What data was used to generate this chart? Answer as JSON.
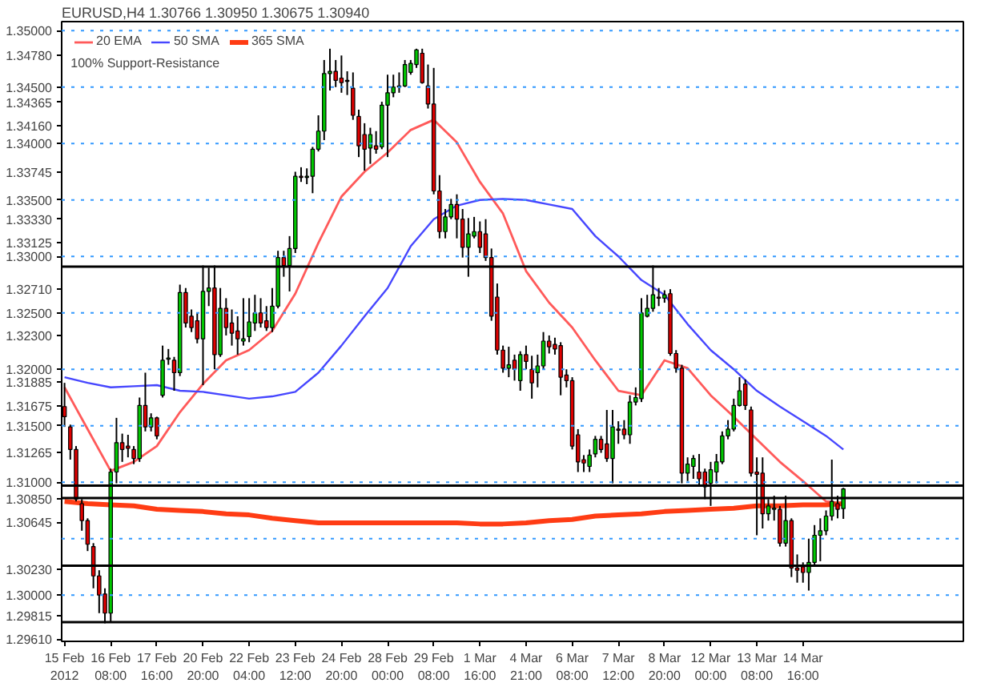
{
  "chart_data": {
    "type": "candlestick",
    "title": "EURUSD,H4 1.30766 1.30950 1.30675 1.30940",
    "categories": [
      "15 Feb 2012",
      null,
      null,
      null,
      null,
      null,
      null,
      null,
      "16 Feb 08:00",
      null,
      null,
      null,
      null,
      null,
      null,
      null,
      "17 Feb 16:00",
      null,
      null,
      null,
      null,
      null,
      null,
      null,
      "20 Feb 20:00",
      null,
      null,
      null,
      null,
      null,
      null,
      null,
      "22 Feb 04:00",
      null,
      null,
      null,
      null,
      null,
      null,
      null,
      "23 Feb 12:00",
      null,
      null,
      null,
      null,
      null,
      null,
      null,
      "24 Feb 20:00",
      null,
      null,
      null,
      null,
      null,
      null,
      null,
      "28 Feb 00:00",
      null,
      null,
      null,
      null,
      null,
      null,
      null,
      "29 Feb 08:00",
      null,
      null,
      null,
      null,
      null,
      null,
      null,
      "1 Mar 16:00",
      null,
      null,
      null,
      null,
      null,
      null,
      null,
      "4 Mar 21:00",
      null,
      null,
      null,
      null,
      null,
      null,
      null,
      "6 Mar 08:00",
      null,
      null,
      null,
      null,
      null,
      null,
      null,
      "7 Mar 12:00",
      null,
      null,
      null,
      null,
      null,
      null,
      null,
      "8 Mar 20:00",
      null,
      null,
      null,
      null,
      null,
      null,
      null,
      "12 Mar 00:00",
      null,
      null,
      null,
      null,
      null,
      null,
      null,
      "13 Mar 08:00",
      null,
      null,
      null,
      null,
      null,
      null,
      null,
      "14 Mar 16:00",
      null,
      null,
      null,
      null,
      null,
      null,
      null
    ],
    "ohlc": [
      [
        1.3167,
        1.3188,
        1.3149,
        1.3158
      ],
      [
        1.3149,
        1.3151,
        1.312,
        1.3129
      ],
      [
        1.3129,
        1.3132,
        1.3083,
        1.3085
      ],
      [
        1.3081,
        1.3085,
        1.3057,
        1.3066
      ],
      [
        1.3066,
        1.3068,
        1.3039,
        1.3045
      ],
      [
        1.3043,
        1.3046,
        1.3006,
        1.3017
      ],
      [
        1.3017,
        1.3022,
        1.2984,
        1.3
      ],
      [
        1.3001,
        1.3006,
        1.2975,
        1.2984
      ],
      [
        1.2984,
        1.3112,
        1.2976,
        1.3109
      ],
      [
        1.3109,
        1.3157,
        1.3099,
        1.3135
      ],
      [
        1.3135,
        1.3143,
        1.3118,
        1.3129
      ],
      [
        1.3132,
        1.3142,
        1.3122,
        1.313
      ],
      [
        1.3129,
        1.3132,
        1.3116,
        1.3121
      ],
      [
        1.3121,
        1.3175,
        1.3118,
        1.3168
      ],
      [
        1.3168,
        1.3197,
        1.3145,
        1.3149
      ],
      [
        1.3149,
        1.3161,
        1.3145,
        1.3157
      ],
      [
        1.3157,
        1.3158,
        1.3138,
        1.3141
      ],
      [
        1.3177,
        1.3221,
        1.3175,
        1.3208
      ],
      [
        1.3209,
        1.3218,
        1.3204,
        1.321
      ],
      [
        1.3208,
        1.3211,
        1.3181,
        1.3197
      ],
      [
        1.3197,
        1.3275,
        1.3194,
        1.3268
      ],
      [
        1.3268,
        1.3272,
        1.3237,
        1.3241
      ],
      [
        1.3247,
        1.3253,
        1.3233,
        1.3237
      ],
      [
        1.3243,
        1.325,
        1.3223,
        1.3227
      ],
      [
        1.3227,
        1.3292,
        1.3186,
        1.3269
      ],
      [
        1.3269,
        1.329,
        1.3256,
        1.3272
      ],
      [
        1.3272,
        1.3292,
        1.32,
        1.3213
      ],
      [
        1.3213,
        1.3272,
        1.3211,
        1.3254
      ],
      [
        1.3254,
        1.3263,
        1.323,
        1.3237
      ],
      [
        1.3241,
        1.3253,
        1.3221,
        1.3232
      ],
      [
        1.3234,
        1.3247,
        1.3213,
        1.3227
      ],
      [
        1.3225,
        1.3263,
        1.3221,
        1.3227
      ],
      [
        1.3229,
        1.3263,
        1.3224,
        1.3242
      ],
      [
        1.3241,
        1.3266,
        1.3234,
        1.325
      ],
      [
        1.325,
        1.3263,
        1.3237,
        1.3241
      ],
      [
        1.3243,
        1.3256,
        1.3234,
        1.3237
      ],
      [
        1.3237,
        1.3272,
        1.3233,
        1.3256
      ],
      [
        1.3256,
        1.3305,
        1.3254,
        1.3299
      ],
      [
        1.3299,
        1.3305,
        1.3282,
        1.3292
      ],
      [
        1.3292,
        1.3318,
        1.3269,
        1.3307
      ],
      [
        1.3307,
        1.3375,
        1.3303,
        1.3371
      ],
      [
        1.3371,
        1.3379,
        1.3366,
        1.337
      ],
      [
        1.337,
        1.3378,
        1.3364,
        1.3371
      ],
      [
        1.3371,
        1.3397,
        1.3356,
        1.3395
      ],
      [
        1.3395,
        1.3425,
        1.3393,
        1.3411
      ],
      [
        1.3411,
        1.3474,
        1.3403,
        1.3462
      ],
      [
        1.3462,
        1.3484,
        1.3447,
        1.3464
      ],
      [
        1.3464,
        1.3474,
        1.345,
        1.3456
      ],
      [
        1.3458,
        1.3478,
        1.3445,
        1.3454
      ],
      [
        1.3456,
        1.3464,
        1.3443,
        1.3455
      ],
      [
        1.3449,
        1.3463,
        1.3421,
        1.3425
      ],
      [
        1.3424,
        1.343,
        1.3388,
        1.3398
      ],
      [
        1.3408,
        1.3418,
        1.3376,
        1.3395
      ],
      [
        1.3396,
        1.3414,
        1.3382,
        1.3408
      ],
      [
        1.3398,
        1.3411,
        1.3391,
        1.3395
      ],
      [
        1.3397,
        1.3437,
        1.3395,
        1.3434
      ],
      [
        1.3434,
        1.3461,
        1.3388,
        1.3445
      ],
      [
        1.3445,
        1.3461,
        1.3441,
        1.345
      ],
      [
        1.345,
        1.3463,
        1.3445,
        1.3451
      ],
      [
        1.3451,
        1.3474,
        1.345,
        1.347
      ],
      [
        1.3463,
        1.3474,
        1.3461,
        1.3471
      ],
      [
        1.347,
        1.3484,
        1.3467,
        1.3483
      ],
      [
        1.348,
        1.3484,
        1.3453,
        1.3454
      ],
      [
        1.3451,
        1.347,
        1.3431,
        1.3435
      ],
      [
        1.3435,
        1.3467,
        1.3355,
        1.3358
      ],
      [
        1.3358,
        1.3372,
        1.3316,
        1.3322
      ],
      [
        1.3322,
        1.3342,
        1.3316,
        1.3335
      ],
      [
        1.3335,
        1.3351,
        1.3333,
        1.3346
      ],
      [
        1.3346,
        1.3355,
        1.3316,
        1.3333
      ],
      [
        1.3333,
        1.3342,
        1.3299,
        1.3308
      ],
      [
        1.3308,
        1.3334,
        1.3282,
        1.332
      ],
      [
        1.3318,
        1.3335,
        1.3316,
        1.3322
      ],
      [
        1.3322,
        1.3331,
        1.3303,
        1.3308
      ],
      [
        1.332,
        1.3333,
        1.3296,
        1.3299
      ],
      [
        1.3299,
        1.3307,
        1.3243,
        1.3247
      ],
      [
        1.3264,
        1.3276,
        1.3213,
        1.3217
      ],
      [
        1.3217,
        1.3221,
        1.3197,
        1.3201
      ],
      [
        1.3201,
        1.322,
        1.3193,
        1.3204
      ],
      [
        1.3208,
        1.3213,
        1.319,
        1.32
      ],
      [
        1.319,
        1.3216,
        1.3181,
        1.3213
      ],
      [
        1.3213,
        1.3221,
        1.32,
        1.3207
      ],
      [
        1.32,
        1.3212,
        1.3174,
        1.3188
      ],
      [
        1.3197,
        1.3213,
        1.3184,
        1.3203
      ],
      [
        1.3203,
        1.3233,
        1.32,
        1.3225
      ],
      [
        1.3225,
        1.323,
        1.3214,
        1.322
      ],
      [
        1.3222,
        1.3228,
        1.3213,
        1.3218
      ],
      [
        1.3221,
        1.3224,
        1.3177,
        1.3193
      ],
      [
        1.3195,
        1.32,
        1.3184,
        1.319
      ],
      [
        1.319,
        1.3193,
        1.3129,
        1.3132
      ],
      [
        1.3142,
        1.3147,
        1.3109,
        1.3118
      ],
      [
        1.312,
        1.3124,
        1.3109,
        1.3117
      ],
      [
        1.3114,
        1.3129,
        1.3109,
        1.3124
      ],
      [
        1.3125,
        1.3141,
        1.3122,
        1.3138
      ],
      [
        1.3138,
        1.3141,
        1.3126,
        1.3129
      ],
      [
        1.3134,
        1.3164,
        1.3118,
        1.3121
      ],
      [
        1.3121,
        1.3164,
        1.3099,
        1.3149
      ],
      [
        1.3147,
        1.3154,
        1.3134,
        1.3146
      ],
      [
        1.3147,
        1.3155,
        1.3138,
        1.3142
      ],
      [
        1.3142,
        1.3177,
        1.3134,
        1.3171
      ],
      [
        1.3171,
        1.3184,
        1.3168,
        1.3175
      ],
      [
        1.3174,
        1.3263,
        1.3171,
        1.325
      ],
      [
        1.3247,
        1.3266,
        1.3246,
        1.3254
      ],
      [
        1.3254,
        1.3292,
        1.3251,
        1.3266
      ],
      [
        1.3264,
        1.3272,
        1.3256,
        1.3263
      ],
      [
        1.3263,
        1.327,
        1.3259,
        1.3266
      ],
      [
        1.3267,
        1.3271,
        1.3212,
        1.3214
      ],
      [
        1.3214,
        1.3217,
        1.3197,
        1.3201
      ],
      [
        1.3201,
        1.3204,
        1.3099,
        1.3108
      ],
      [
        1.3108,
        1.3122,
        1.3101,
        1.3116
      ],
      [
        1.3114,
        1.3124,
        1.3103,
        1.3121
      ],
      [
        1.3109,
        1.3125,
        1.3097,
        1.3103
      ],
      [
        1.3109,
        1.3112,
        1.3085,
        1.3096
      ],
      [
        1.3099,
        1.3118,
        1.3079,
        1.3111
      ],
      [
        1.3109,
        1.3125,
        1.3099,
        1.3118
      ],
      [
        1.3118,
        1.3145,
        1.3116,
        1.3141
      ],
      [
        1.3141,
        1.3155,
        1.3138,
        1.3147
      ],
      [
        1.3147,
        1.3174,
        1.3145,
        1.3168
      ],
      [
        1.3168,
        1.3193,
        1.3167,
        1.3181
      ],
      [
        1.3187,
        1.3191,
        1.3164,
        1.3168
      ],
      [
        1.3164,
        1.3167,
        1.3105,
        1.3108
      ],
      [
        1.3109,
        1.3122,
        1.3053,
        1.3107
      ],
      [
        1.3108,
        1.3122,
        1.3059,
        1.3072
      ],
      [
        1.3072,
        1.3085,
        1.3066,
        1.3079
      ],
      [
        1.3076,
        1.3088,
        1.3066,
        1.3077
      ],
      [
        1.3076,
        1.3079,
        1.3043,
        1.3046
      ],
      [
        1.3046,
        1.3088,
        1.3043,
        1.3066
      ],
      [
        1.3066,
        1.3068,
        1.3016,
        1.3024
      ],
      [
        1.3024,
        1.3036,
        1.3011,
        1.3022
      ],
      [
        1.3025,
        1.3029,
        1.3011,
        1.302
      ],
      [
        1.302,
        1.305,
        1.3004,
        1.3029
      ],
      [
        1.3029,
        1.3062,
        1.3026,
        1.3053
      ],
      [
        1.3053,
        1.3068,
        1.303,
        1.3057
      ],
      [
        1.3057,
        1.3075,
        1.3053,
        1.307
      ],
      [
        1.307,
        1.312,
        1.3066,
        1.3083
      ],
      [
        1.3081,
        1.3088,
        1.3068,
        1.3076
      ],
      [
        1.30766,
        1.3095,
        1.30675,
        1.3094
      ]
    ],
    "series": [
      {
        "name": "20 EMA",
        "type": "line",
        "color": "#ff5a5a",
        "values": [
          1.3184,
          null,
          null,
          null,
          1.3147,
          null,
          null,
          null,
          1.311,
          null,
          null,
          null,
          1.3118,
          null,
          null,
          null,
          1.3132,
          null,
          null,
          null,
          1.3162,
          null,
          null,
          null,
          1.3187,
          null,
          null,
          null,
          1.3208,
          null,
          null,
          null,
          1.3217,
          null,
          null,
          null,
          1.3234,
          null,
          null,
          null,
          1.3267,
          null,
          null,
          null,
          1.3312,
          null,
          null,
          null,
          1.3353,
          null,
          null,
          null,
          1.3375,
          null,
          null,
          null,
          1.3392,
          null,
          null,
          null,
          1.3412,
          null,
          null,
          null,
          1.3421,
          null,
          null,
          null,
          1.3401,
          null,
          null,
          null,
          1.3366,
          null,
          null,
          null,
          1.3338,
          null,
          null,
          null,
          1.3287,
          null,
          null,
          null,
          1.3259,
          null,
          null,
          null,
          1.3237,
          null,
          null,
          null,
          1.3208,
          null,
          null,
          null,
          1.3181,
          null,
          null,
          null,
          1.3177,
          null,
          null,
          null,
          1.3208,
          null,
          null,
          null,
          1.3201,
          null,
          null,
          null,
          1.3177,
          null,
          null,
          null,
          1.3158,
          null,
          null,
          null,
          1.3138,
          null,
          null,
          null,
          1.3118,
          null,
          null,
          null,
          1.3101,
          null,
          null,
          null,
          1.3083,
          null,
          null,
          1.3081
        ]
      },
      {
        "name": "50 SMA",
        "type": "line",
        "color": "#4646ff",
        "values": [
          1.3193,
          null,
          null,
          null,
          1.3188,
          null,
          null,
          null,
          1.3184,
          null,
          null,
          null,
          1.3185,
          null,
          null,
          null,
          1.3186,
          null,
          null,
          null,
          1.3181,
          null,
          null,
          null,
          1.318,
          null,
          null,
          null,
          1.3177,
          null,
          null,
          null,
          1.3174,
          null,
          null,
          null,
          1.3176,
          null,
          null,
          null,
          1.318,
          null,
          null,
          null,
          1.3197,
          null,
          null,
          null,
          1.3221,
          null,
          null,
          null,
          1.3247,
          null,
          null,
          null,
          1.3272,
          null,
          null,
          null,
          1.3309,
          null,
          null,
          null,
          1.3333,
          null,
          null,
          null,
          1.3345,
          null,
          null,
          null,
          1.335,
          null,
          null,
          null,
          1.3351,
          null,
          null,
          null,
          1.335,
          null,
          null,
          null,
          1.3346,
          null,
          null,
          null,
          1.3342,
          null,
          null,
          null,
          1.3318,
          null,
          null,
          null,
          1.33,
          null,
          null,
          null,
          1.3279,
          null,
          null,
          null,
          1.3266,
          null,
          null,
          null,
          1.324,
          null,
          null,
          null,
          1.3217,
          null,
          null,
          null,
          1.32,
          null,
          null,
          null,
          1.3181,
          null,
          null,
          null,
          1.3167,
          null,
          null,
          null,
          1.3154,
          null,
          null,
          null,
          1.3141,
          null,
          null,
          1.3129
        ]
      },
      {
        "name": "365 SMA",
        "type": "line",
        "color": "#ff3c14",
        "values": [
          1.3083,
          null,
          null,
          null,
          1.3081,
          null,
          null,
          null,
          1.308,
          null,
          null,
          null,
          1.3079,
          null,
          null,
          null,
          1.3076,
          null,
          null,
          null,
          1.3075,
          null,
          null,
          null,
          1.3074,
          null,
          null,
          null,
          1.3072,
          null,
          null,
          null,
          1.3071,
          null,
          null,
          null,
          1.3068,
          null,
          null,
          null,
          1.3066,
          null,
          null,
          null,
          1.3064,
          null,
          null,
          null,
          1.3064,
          null,
          null,
          null,
          1.3064,
          null,
          null,
          null,
          1.3064,
          null,
          null,
          null,
          1.3064,
          null,
          null,
          null,
          1.3064,
          null,
          null,
          null,
          1.3064,
          null,
          null,
          null,
          1.3063,
          null,
          null,
          null,
          1.3063,
          null,
          null,
          null,
          1.3064,
          null,
          null,
          null,
          1.3066,
          null,
          null,
          null,
          1.3067,
          null,
          null,
          null,
          1.307,
          null,
          null,
          null,
          1.3071,
          null,
          null,
          null,
          1.3072,
          null,
          null,
          null,
          1.3074,
          null,
          null,
          null,
          1.3075,
          null,
          null,
          null,
          1.3076,
          null,
          null,
          null,
          1.3077,
          null,
          null,
          null,
          1.3079,
          null,
          null,
          null,
          1.3079,
          null,
          null,
          null,
          1.308,
          null,
          null,
          null,
          1.308,
          null,
          null,
          1.3081
        ]
      }
    ],
    "ylim": [
      1.2959,
      1.3508
    ],
    "yticks": [
      {
        "value": 1.2961,
        "label": "1.29610"
      },
      {
        "value": 1.29815,
        "label": "1.29815"
      },
      {
        "value": 1.3,
        "label": "1.30000"
      },
      {
        "value": 1.3023,
        "label": "1.30230"
      },
      {
        "value": 1.30645,
        "label": "1.30645"
      },
      {
        "value": 1.3085,
        "label": "1.30850"
      },
      {
        "value": 1.31,
        "label": "1.31000"
      },
      {
        "value": 1.31265,
        "label": "1.31265"
      },
      {
        "value": 1.315,
        "label": "1.31500"
      },
      {
        "value": 1.31675,
        "label": "1.31675"
      },
      {
        "value": 1.31885,
        "label": "1.31885"
      },
      {
        "value": 1.32,
        "label": "1.32000"
      },
      {
        "value": 1.323,
        "label": "1.32300"
      },
      {
        "value": 1.325,
        "label": "1.32500"
      },
      {
        "value": 1.3271,
        "label": "1.32710"
      },
      {
        "value": 1.33,
        "label": "1.33000"
      },
      {
        "value": 1.33125,
        "label": "1.33125"
      },
      {
        "value": 1.3333,
        "label": "1.33330"
      },
      {
        "value": 1.335,
        "label": "1.33500"
      },
      {
        "value": 1.33745,
        "label": "1.33745"
      },
      {
        "value": 1.34,
        "label": "1.34000"
      },
      {
        "value": 1.3416,
        "label": "1.34160"
      },
      {
        "value": 1.34365,
        "label": "1.34365"
      },
      {
        "value": 1.345,
        "label": "1.34500"
      },
      {
        "value": 1.3478,
        "label": "1.34780"
      },
      {
        "value": 1.35,
        "label": "1.35000"
      }
    ],
    "ref_lines": [
      {
        "axis": "y",
        "value": 1.3,
        "color": "#3399ff",
        "line_style": "dotted"
      },
      {
        "axis": "y",
        "value": 1.305,
        "color": "#3399ff",
        "line_style": "dotted"
      },
      {
        "axis": "y",
        "value": 1.31,
        "color": "#3399ff",
        "line_style": "dotted"
      },
      {
        "axis": "y",
        "value": 1.315,
        "color": "#3399ff",
        "line_style": "dotted"
      },
      {
        "axis": "y",
        "value": 1.32,
        "color": "#3399ff",
        "line_style": "dotted"
      },
      {
        "axis": "y",
        "value": 1.325,
        "color": "#3399ff",
        "line_style": "dotted"
      },
      {
        "axis": "y",
        "value": 1.33,
        "color": "#3399ff",
        "line_style": "dotted"
      },
      {
        "axis": "y",
        "value": 1.335,
        "color": "#3399ff",
        "line_style": "dotted"
      },
      {
        "axis": "y",
        "value": 1.34,
        "color": "#3399ff",
        "line_style": "dotted"
      },
      {
        "axis": "y",
        "value": 1.345,
        "color": "#3399ff",
        "line_style": "dotted"
      },
      {
        "axis": "y",
        "value": 1.35,
        "color": "#3399ff",
        "line_style": "dotted"
      },
      {
        "axis": "y",
        "value": 1.3291,
        "color": "#000000",
        "line_style": "solid"
      },
      {
        "axis": "y",
        "value": 1.3097,
        "color": "#000000",
        "line_style": "solid"
      },
      {
        "axis": "y",
        "value": 1.3086,
        "color": "#000000",
        "line_style": "solid"
      },
      {
        "axis": "y",
        "value": 1.3026,
        "color": "#000000",
        "line_style": "solid"
      },
      {
        "axis": "y",
        "value": 1.2976,
        "color": "#000000",
        "line_style": "solid"
      }
    ],
    "annotations": [
      "100% Support-Resistance"
    ],
    "legend": "top left"
  }
}
